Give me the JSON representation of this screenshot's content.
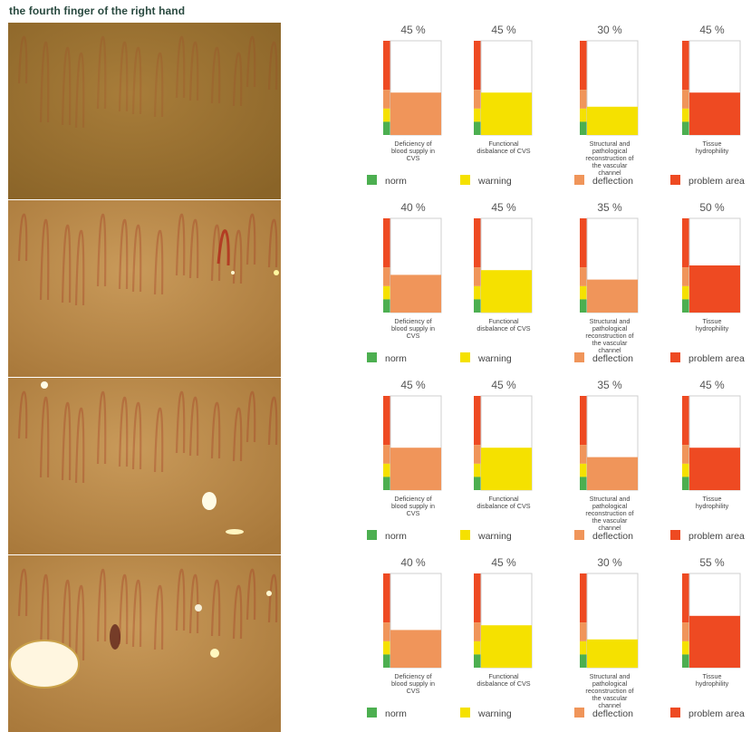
{
  "title": "the fourth finger of the right hand",
  "colors": {
    "norm": "#4caf50",
    "warning": "#f5e100",
    "deflection": "#f0955a",
    "problem_area": "#ee4a22",
    "photo_base": "#b3873f",
    "capillary": "#a33a22"
  },
  "photos": [
    {
      "name": "capillaroscopy-image-1"
    },
    {
      "name": "capillaroscopy-image-2"
    },
    {
      "name": "capillaroscopy-image-3"
    },
    {
      "name": "capillaroscopy-image-4"
    }
  ],
  "legend": [
    {
      "key": "norm",
      "label": "norm"
    },
    {
      "key": "warning",
      "label": "warning"
    },
    {
      "key": "deflection",
      "label": "deflection"
    },
    {
      "key": "problem_area",
      "label": "problem area"
    }
  ],
  "chart_data": [
    {
      "type": "bar",
      "ylim": [
        0,
        100
      ],
      "categories": [
        "Deficiency of blood supply in CVS",
        "Functional disbalance of CVS",
        "Structural and pathological reconstruction of the vascular channel",
        "Tissue hydrophility"
      ],
      "values": [
        45,
        45,
        30,
        45
      ],
      "value_labels": [
        "45 %",
        "45 %",
        "30 %",
        "45 %"
      ],
      "bar_levels": [
        "deflection",
        "warning",
        "warning",
        "problem_area"
      ]
    },
    {
      "type": "bar",
      "ylim": [
        0,
        100
      ],
      "categories": [
        "Deficiency of blood supply in CVS",
        "Functional disbalance of CVS",
        "Structural and pathological reconstruction of the vascular channel",
        "Tissue hydrophility"
      ],
      "values": [
        40,
        45,
        35,
        50
      ],
      "value_labels": [
        "40 %",
        "45 %",
        "35 %",
        "50 %"
      ],
      "bar_levels": [
        "deflection",
        "warning",
        "deflection",
        "problem_area"
      ]
    },
    {
      "type": "bar",
      "ylim": [
        0,
        100
      ],
      "categories": [
        "Deficiency of blood supply in CVS",
        "Functional disbalance of CVS",
        "Structural and pathological reconstruction of the vascular channel",
        "Tissue hydrophility"
      ],
      "values": [
        45,
        45,
        35,
        45
      ],
      "value_labels": [
        "45 %",
        "45 %",
        "35 %",
        "45 %"
      ],
      "bar_levels": [
        "deflection",
        "warning",
        "deflection",
        "problem_area"
      ]
    },
    {
      "type": "bar",
      "ylim": [
        0,
        100
      ],
      "categories": [
        "Deficiency of blood supply in CVS",
        "Functional disbalance of CVS",
        "Structural and pathological reconstruction of the vascular channel",
        "Tissue hydrophility"
      ],
      "values": [
        40,
        45,
        30,
        55
      ],
      "value_labels": [
        "40 %",
        "45 %",
        "30 %",
        "55 %"
      ],
      "bar_levels": [
        "deflection",
        "warning",
        "warning",
        "problem_area"
      ]
    }
  ]
}
